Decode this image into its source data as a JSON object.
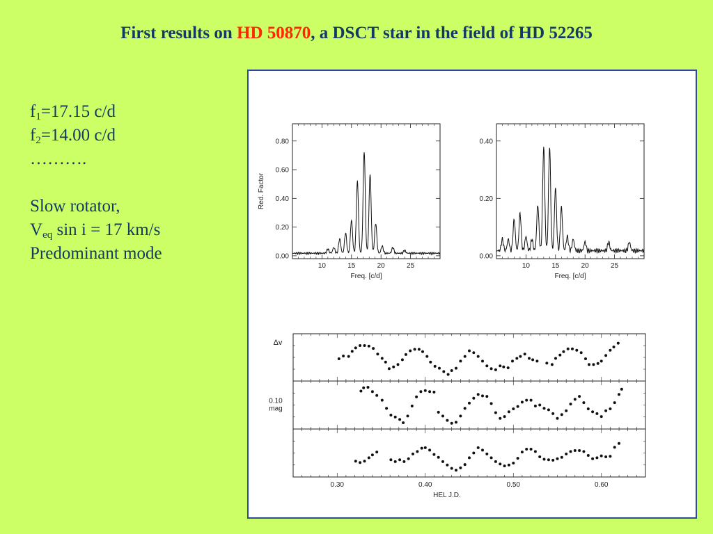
{
  "slide": {
    "title_pre": "First results on ",
    "title_highlight": "HD 50870",
    "title_post": ", a DSCT star in the field of HD 52265",
    "f1_base": "f",
    "f1_sub": "1",
    "f1_value": "=17.15 c/d",
    "f2_base": "f",
    "f2_sub": "2",
    "f2_value": "=14.00 c/d",
    "ellipsis": "……….",
    "rotator": "Slow rotator,",
    "veq_base": "V",
    "veq_sub": "eq",
    "veq_value": " sin i = 17 km/s",
    "mode": "Predominant mode"
  },
  "colors": {
    "background": "#ccff66",
    "title": "#143a63",
    "highlight": "#ff2600",
    "panel_border": "#2c4a9a"
  },
  "chart_data": [
    {
      "type": "line",
      "ylabel": "Red. Factor",
      "xlabel": "Freq. [c/d]",
      "xlim": [
        5,
        30
      ],
      "ylim": [
        -0.02,
        0.92
      ],
      "xticks": [
        10,
        15,
        20,
        25
      ],
      "yticks": [
        0.0,
        0.2,
        0.4,
        0.6,
        0.8
      ],
      "ytick_labels": [
        "0.00",
        "0.20",
        "0.40",
        "0.60",
        "0.80"
      ],
      "peaks": [
        {
          "x": 11.0,
          "y": 0.03
        },
        {
          "x": 12.0,
          "y": 0.04
        },
        {
          "x": 13.0,
          "y": 0.1
        },
        {
          "x": 14.0,
          "y": 0.14
        },
        {
          "x": 15.0,
          "y": 0.23
        },
        {
          "x": 16.0,
          "y": 0.5
        },
        {
          "x": 17.15,
          "y": 0.71
        },
        {
          "x": 18.15,
          "y": 0.55
        },
        {
          "x": 19.1,
          "y": 0.21
        },
        {
          "x": 20.2,
          "y": 0.05
        },
        {
          "x": 22.0,
          "y": 0.04
        },
        {
          "x": 24.0,
          "y": 0.02
        }
      ]
    },
    {
      "type": "line",
      "ylabel": "",
      "xlabel": "Freq. [c/d]",
      "xlim": [
        5,
        30
      ],
      "ylim": [
        -0.01,
        0.46
      ],
      "xticks": [
        10,
        15,
        20,
        25
      ],
      "yticks": [
        0.0,
        0.2,
        0.4
      ],
      "ytick_labels": [
        "0.00",
        "0.20",
        "0.40"
      ],
      "peaks": [
        {
          "x": 6.0,
          "y": 0.04
        },
        {
          "x": 7.0,
          "y": 0.04
        },
        {
          "x": 8.0,
          "y": 0.11
        },
        {
          "x": 9.0,
          "y": 0.13
        },
        {
          "x": 10.0,
          "y": 0.05
        },
        {
          "x": 11.0,
          "y": 0.04
        },
        {
          "x": 12.0,
          "y": 0.16
        },
        {
          "x": 13.0,
          "y": 0.36
        },
        {
          "x": 14.0,
          "y": 0.36
        },
        {
          "x": 15.0,
          "y": 0.22
        },
        {
          "x": 16.0,
          "y": 0.15
        },
        {
          "x": 17.0,
          "y": 0.05
        },
        {
          "x": 18.0,
          "y": 0.04
        },
        {
          "x": 20.0,
          "y": 0.03
        },
        {
          "x": 24.0,
          "y": 0.03
        },
        {
          "x": 27.5,
          "y": 0.03
        }
      ]
    },
    {
      "type": "scatter",
      "shared_x": {
        "xlabel": "HEL J.D.",
        "xlim": [
          0.25,
          0.65
        ],
        "xticks": [
          0.3,
          0.4,
          0.5,
          0.6
        ],
        "xtick_labels": [
          "0.30",
          "0.40",
          "0.50",
          "0.60"
        ]
      },
      "panels": [
        {
          "ylabel": "Δv",
          "ylim": [
            0,
            1
          ],
          "points": [
            [
              0.302,
              0.47
            ],
            [
              0.307,
              0.53
            ],
            [
              0.313,
              0.52
            ],
            [
              0.317,
              0.63
            ],
            [
              0.321,
              0.7
            ],
            [
              0.326,
              0.75
            ],
            [
              0.331,
              0.75
            ],
            [
              0.336,
              0.74
            ],
            [
              0.341,
              0.69
            ],
            [
              0.346,
              0.57
            ],
            [
              0.351,
              0.48
            ],
            [
              0.355,
              0.4
            ],
            [
              0.359,
              0.26
            ],
            [
              0.364,
              0.3
            ],
            [
              0.369,
              0.35
            ],
            [
              0.374,
              0.45
            ],
            [
              0.378,
              0.56
            ],
            [
              0.383,
              0.64
            ],
            [
              0.388,
              0.67
            ],
            [
              0.393,
              0.67
            ],
            [
              0.397,
              0.62
            ],
            [
              0.402,
              0.52
            ],
            [
              0.406,
              0.4
            ],
            [
              0.411,
              0.31
            ],
            [
              0.416,
              0.27
            ],
            [
              0.421,
              0.2
            ],
            [
              0.426,
              0.14
            ],
            [
              0.43,
              0.22
            ],
            [
              0.435,
              0.27
            ],
            [
              0.44,
              0.42
            ],
            [
              0.445,
              0.52
            ],
            [
              0.45,
              0.64
            ],
            [
              0.455,
              0.6
            ],
            [
              0.46,
              0.52
            ],
            [
              0.465,
              0.42
            ],
            [
              0.47,
              0.32
            ],
            [
              0.475,
              0.26
            ],
            [
              0.48,
              0.24
            ],
            [
              0.485,
              0.32
            ],
            [
              0.489,
              0.3
            ],
            [
              0.494,
              0.28
            ],
            [
              0.499,
              0.42
            ],
            [
              0.504,
              0.48
            ],
            [
              0.508,
              0.52
            ],
            [
              0.513,
              0.57
            ],
            [
              0.518,
              0.48
            ],
            [
              0.522,
              0.45
            ],
            [
              0.527,
              0.42
            ],
            [
              0.538,
              0.38
            ],
            [
              0.544,
              0.35
            ],
            [
              0.548,
              0.48
            ],
            [
              0.553,
              0.55
            ],
            [
              0.557,
              0.62
            ],
            [
              0.562,
              0.68
            ],
            [
              0.567,
              0.68
            ],
            [
              0.572,
              0.65
            ],
            [
              0.577,
              0.6
            ],
            [
              0.582,
              0.47
            ],
            [
              0.586,
              0.35
            ],
            [
              0.591,
              0.35
            ],
            [
              0.596,
              0.37
            ],
            [
              0.6,
              0.42
            ],
            [
              0.605,
              0.54
            ],
            [
              0.61,
              0.65
            ],
            [
              0.614,
              0.72
            ],
            [
              0.619,
              0.8
            ]
          ]
        },
        {
          "ylabel": "0.10 mag",
          "ylim": [
            0,
            1
          ],
          "points": [
            [
              0.327,
              0.79
            ],
            [
              0.33,
              0.86
            ],
            [
              0.335,
              0.87
            ],
            [
              0.34,
              0.78
            ],
            [
              0.345,
              0.7
            ],
            [
              0.351,
              0.6
            ],
            [
              0.356,
              0.43
            ],
            [
              0.361,
              0.29
            ],
            [
              0.366,
              0.25
            ],
            [
              0.371,
              0.2
            ],
            [
              0.375,
              0.13
            ],
            [
              0.38,
              0.27
            ],
            [
              0.385,
              0.48
            ],
            [
              0.39,
              0.67
            ],
            [
              0.395,
              0.78
            ],
            [
              0.4,
              0.8
            ],
            [
              0.405,
              0.78
            ],
            [
              0.41,
              0.77
            ],
            [
              0.415,
              0.35
            ],
            [
              0.42,
              0.27
            ],
            [
              0.425,
              0.18
            ],
            [
              0.43,
              0.12
            ],
            [
              0.435,
              0.14
            ],
            [
              0.44,
              0.27
            ],
            [
              0.445,
              0.43
            ],
            [
              0.45,
              0.54
            ],
            [
              0.455,
              0.64
            ],
            [
              0.46,
              0.72
            ],
            [
              0.465,
              0.69
            ],
            [
              0.47,
              0.68
            ],
            [
              0.475,
              0.53
            ],
            [
              0.48,
              0.34
            ],
            [
              0.485,
              0.22
            ],
            [
              0.49,
              0.26
            ],
            [
              0.495,
              0.36
            ],
            [
              0.5,
              0.42
            ],
            [
              0.505,
              0.47
            ],
            [
              0.51,
              0.56
            ],
            [
              0.515,
              0.6
            ],
            [
              0.52,
              0.6
            ],
            [
              0.525,
              0.48
            ],
            [
              0.53,
              0.5
            ],
            [
              0.535,
              0.43
            ],
            [
              0.54,
              0.4
            ],
            [
              0.545,
              0.32
            ],
            [
              0.55,
              0.22
            ],
            [
              0.555,
              0.3
            ],
            [
              0.56,
              0.38
            ],
            [
              0.565,
              0.52
            ],
            [
              0.57,
              0.62
            ],
            [
              0.575,
              0.68
            ],
            [
              0.58,
              0.55
            ],
            [
              0.585,
              0.42
            ],
            [
              0.59,
              0.36
            ],
            [
              0.595,
              0.32
            ],
            [
              0.6,
              0.26
            ],
            [
              0.605,
              0.38
            ],
            [
              0.61,
              0.42
            ],
            [
              0.615,
              0.55
            ],
            [
              0.62,
              0.72
            ],
            [
              0.623,
              0.83
            ]
          ]
        },
        {
          "ylabel": "",
          "ylim": [
            0,
            1
          ],
          "points": [
            [
              0.321,
              0.33
            ],
            [
              0.326,
              0.3
            ],
            [
              0.331,
              0.33
            ],
            [
              0.336,
              0.4
            ],
            [
              0.34,
              0.46
            ],
            [
              0.345,
              0.52
            ],
            [
              0.361,
              0.36
            ],
            [
              0.366,
              0.32
            ],
            [
              0.371,
              0.36
            ],
            [
              0.376,
              0.32
            ],
            [
              0.381,
              0.38
            ],
            [
              0.386,
              0.48
            ],
            [
              0.391,
              0.53
            ],
            [
              0.396,
              0.6
            ],
            [
              0.4,
              0.61
            ],
            [
              0.405,
              0.56
            ],
            [
              0.41,
              0.47
            ],
            [
              0.415,
              0.41
            ],
            [
              0.42,
              0.32
            ],
            [
              0.425,
              0.25
            ],
            [
              0.43,
              0.18
            ],
            [
              0.435,
              0.14
            ],
            [
              0.44,
              0.19
            ],
            [
              0.445,
              0.26
            ],
            [
              0.45,
              0.4
            ],
            [
              0.455,
              0.5
            ],
            [
              0.46,
              0.61
            ],
            [
              0.465,
              0.56
            ],
            [
              0.47,
              0.48
            ],
            [
              0.475,
              0.4
            ],
            [
              0.48,
              0.32
            ],
            [
              0.485,
              0.27
            ],
            [
              0.49,
              0.23
            ],
            [
              0.495,
              0.25
            ],
            [
              0.5,
              0.29
            ],
            [
              0.505,
              0.39
            ],
            [
              0.51,
              0.52
            ],
            [
              0.515,
              0.58
            ],
            [
              0.52,
              0.58
            ],
            [
              0.525,
              0.53
            ],
            [
              0.53,
              0.42
            ],
            [
              0.535,
              0.37
            ],
            [
              0.54,
              0.36
            ],
            [
              0.545,
              0.35
            ],
            [
              0.55,
              0.38
            ],
            [
              0.555,
              0.41
            ],
            [
              0.56,
              0.48
            ],
            [
              0.565,
              0.53
            ],
            [
              0.57,
              0.55
            ],
            [
              0.575,
              0.55
            ],
            [
              0.58,
              0.53
            ],
            [
              0.585,
              0.45
            ],
            [
              0.59,
              0.38
            ],
            [
              0.595,
              0.4
            ],
            [
              0.6,
              0.44
            ],
            [
              0.605,
              0.42
            ],
            [
              0.61,
              0.43
            ],
            [
              0.615,
              0.62
            ],
            [
              0.62,
              0.7
            ]
          ]
        }
      ]
    }
  ]
}
